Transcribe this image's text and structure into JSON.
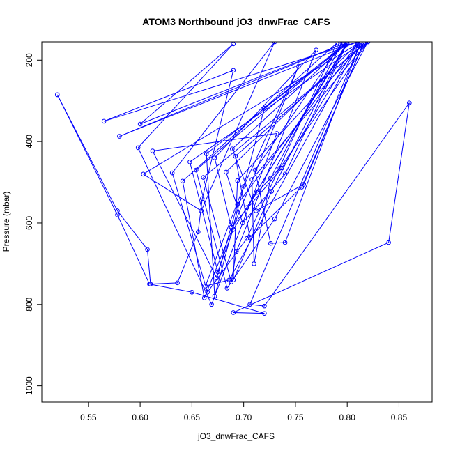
{
  "chart_data": {
    "type": "line",
    "title": "ATOM3 Northbound jO3_dnwFrac_CAFS",
    "xlabel": "jO3_dnwFrac_CAFS",
    "ylabel": "Pressure (mbar)",
    "xlim": [
      0.505,
      0.882
    ],
    "ylim": [
      1040,
      155
    ],
    "y_reversed": true,
    "x_ticks": [
      0.55,
      0.6,
      0.65,
      0.7,
      0.75,
      0.8,
      0.85
    ],
    "x_tick_labels": [
      "0.55",
      "0.60",
      "0.65",
      "0.70",
      "0.75",
      "0.80",
      "0.85"
    ],
    "y_ticks": [
      200,
      400,
      600,
      800,
      1000
    ],
    "y_tick_labels": [
      "200",
      "400",
      "600",
      "800",
      "1000"
    ],
    "color": "#0000ff",
    "marker": "open-circle",
    "grid": false,
    "series": [
      {
        "points": [
          [
            0.52,
            285
          ],
          [
            0.578,
            570
          ],
          [
            0.607,
            665
          ],
          [
            0.61,
            750
          ],
          [
            0.636,
            747
          ],
          [
            0.656,
            622
          ],
          [
            0.66,
            540
          ],
          [
            0.69,
            225
          ],
          [
            0.565,
            350
          ],
          [
            0.81,
            155
          ],
          [
            0.58,
            387
          ],
          [
            0.796,
            160
          ],
          [
            0.6,
            357
          ],
          [
            0.69,
            160
          ],
          [
            0.598,
            415
          ],
          [
            0.669,
            800
          ],
          [
            0.732,
            380
          ],
          [
            0.612,
            423
          ],
          [
            0.674,
            735
          ],
          [
            0.694,
            554
          ],
          [
            0.81,
            160
          ],
          [
            0.603,
            480
          ],
          [
            0.659,
            570
          ],
          [
            0.73,
            155
          ],
          [
            0.631,
            477
          ],
          [
            0.665,
            770
          ],
          [
            0.703,
            638
          ],
          [
            0.79,
            158
          ],
          [
            0.641,
            497
          ],
          [
            0.662,
            784
          ],
          [
            0.753,
            215
          ],
          [
            0.7,
            510
          ],
          [
            0.663,
            755
          ],
          [
            0.686,
            740
          ],
          [
            0.81,
            165
          ],
          [
            0.648,
            450
          ],
          [
            0.675,
            720
          ],
          [
            0.69,
            616
          ],
          [
            0.8,
            160
          ],
          [
            0.664,
            430
          ],
          [
            0.672,
            780
          ],
          [
            0.72,
            318
          ],
          [
            0.799,
            158
          ],
          [
            0.654,
            470
          ],
          [
            0.684,
            760
          ],
          [
            0.73,
            590
          ],
          [
            0.82,
            155
          ],
          [
            0.661,
            488
          ],
          [
            0.688,
            745
          ],
          [
            0.693,
            670
          ],
          [
            0.77,
            175
          ],
          [
            0.672,
            440
          ],
          [
            0.688,
            610
          ],
          [
            0.737,
            465
          ],
          [
            0.81,
            160
          ],
          [
            0.683,
            475
          ],
          [
            0.699,
            600
          ],
          [
            0.74,
            480
          ],
          [
            0.8,
            158
          ],
          [
            0.689,
            418
          ],
          [
            0.712,
            570
          ],
          [
            0.758,
            505
          ],
          [
            0.815,
            162
          ],
          [
            0.692,
            436
          ],
          [
            0.706,
            635
          ],
          [
            0.756,
            512
          ],
          [
            0.816,
            158
          ],
          [
            0.694,
            496
          ],
          [
            0.69,
            740
          ],
          [
            0.727,
            522
          ],
          [
            0.798,
            165
          ],
          [
            0.703,
            562
          ],
          [
            0.713,
            525
          ],
          [
            0.735,
            465
          ],
          [
            0.82,
            155
          ],
          [
            0.708,
            493
          ],
          [
            0.71,
            700
          ],
          [
            0.726,
            490
          ],
          [
            0.795,
            158
          ],
          [
            0.711,
            470
          ],
          [
            0.726,
            650
          ],
          [
            0.74,
            648
          ],
          [
            0.812,
            163
          ],
          [
            0.706,
            800
          ],
          [
            0.72,
            804
          ],
          [
            0.86,
            305
          ],
          [
            0.84,
            648
          ],
          [
            0.69,
            820
          ],
          [
            0.72,
            822
          ],
          [
            0.65,
            770
          ],
          [
            0.609,
            750
          ],
          [
            0.578,
            580
          ],
          [
            0.52,
            285
          ]
        ]
      }
    ]
  }
}
